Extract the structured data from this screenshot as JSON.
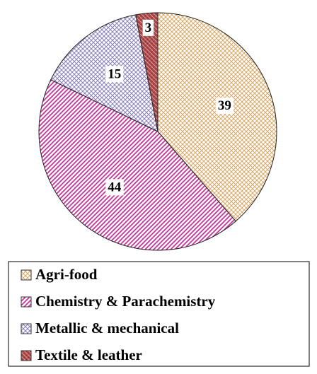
{
  "chart_data": {
    "type": "pie",
    "categories": [
      "Agri-food",
      "Chemistry & Parachemistry",
      "Metallic & mechanical",
      "Textile & leather"
    ],
    "values": [
      39,
      44,
      15,
      3
    ],
    "colors": [
      "#d9a866",
      "#c8329a",
      "#8a80b8",
      "#9c2a2a"
    ],
    "legend": "bottom"
  }
}
